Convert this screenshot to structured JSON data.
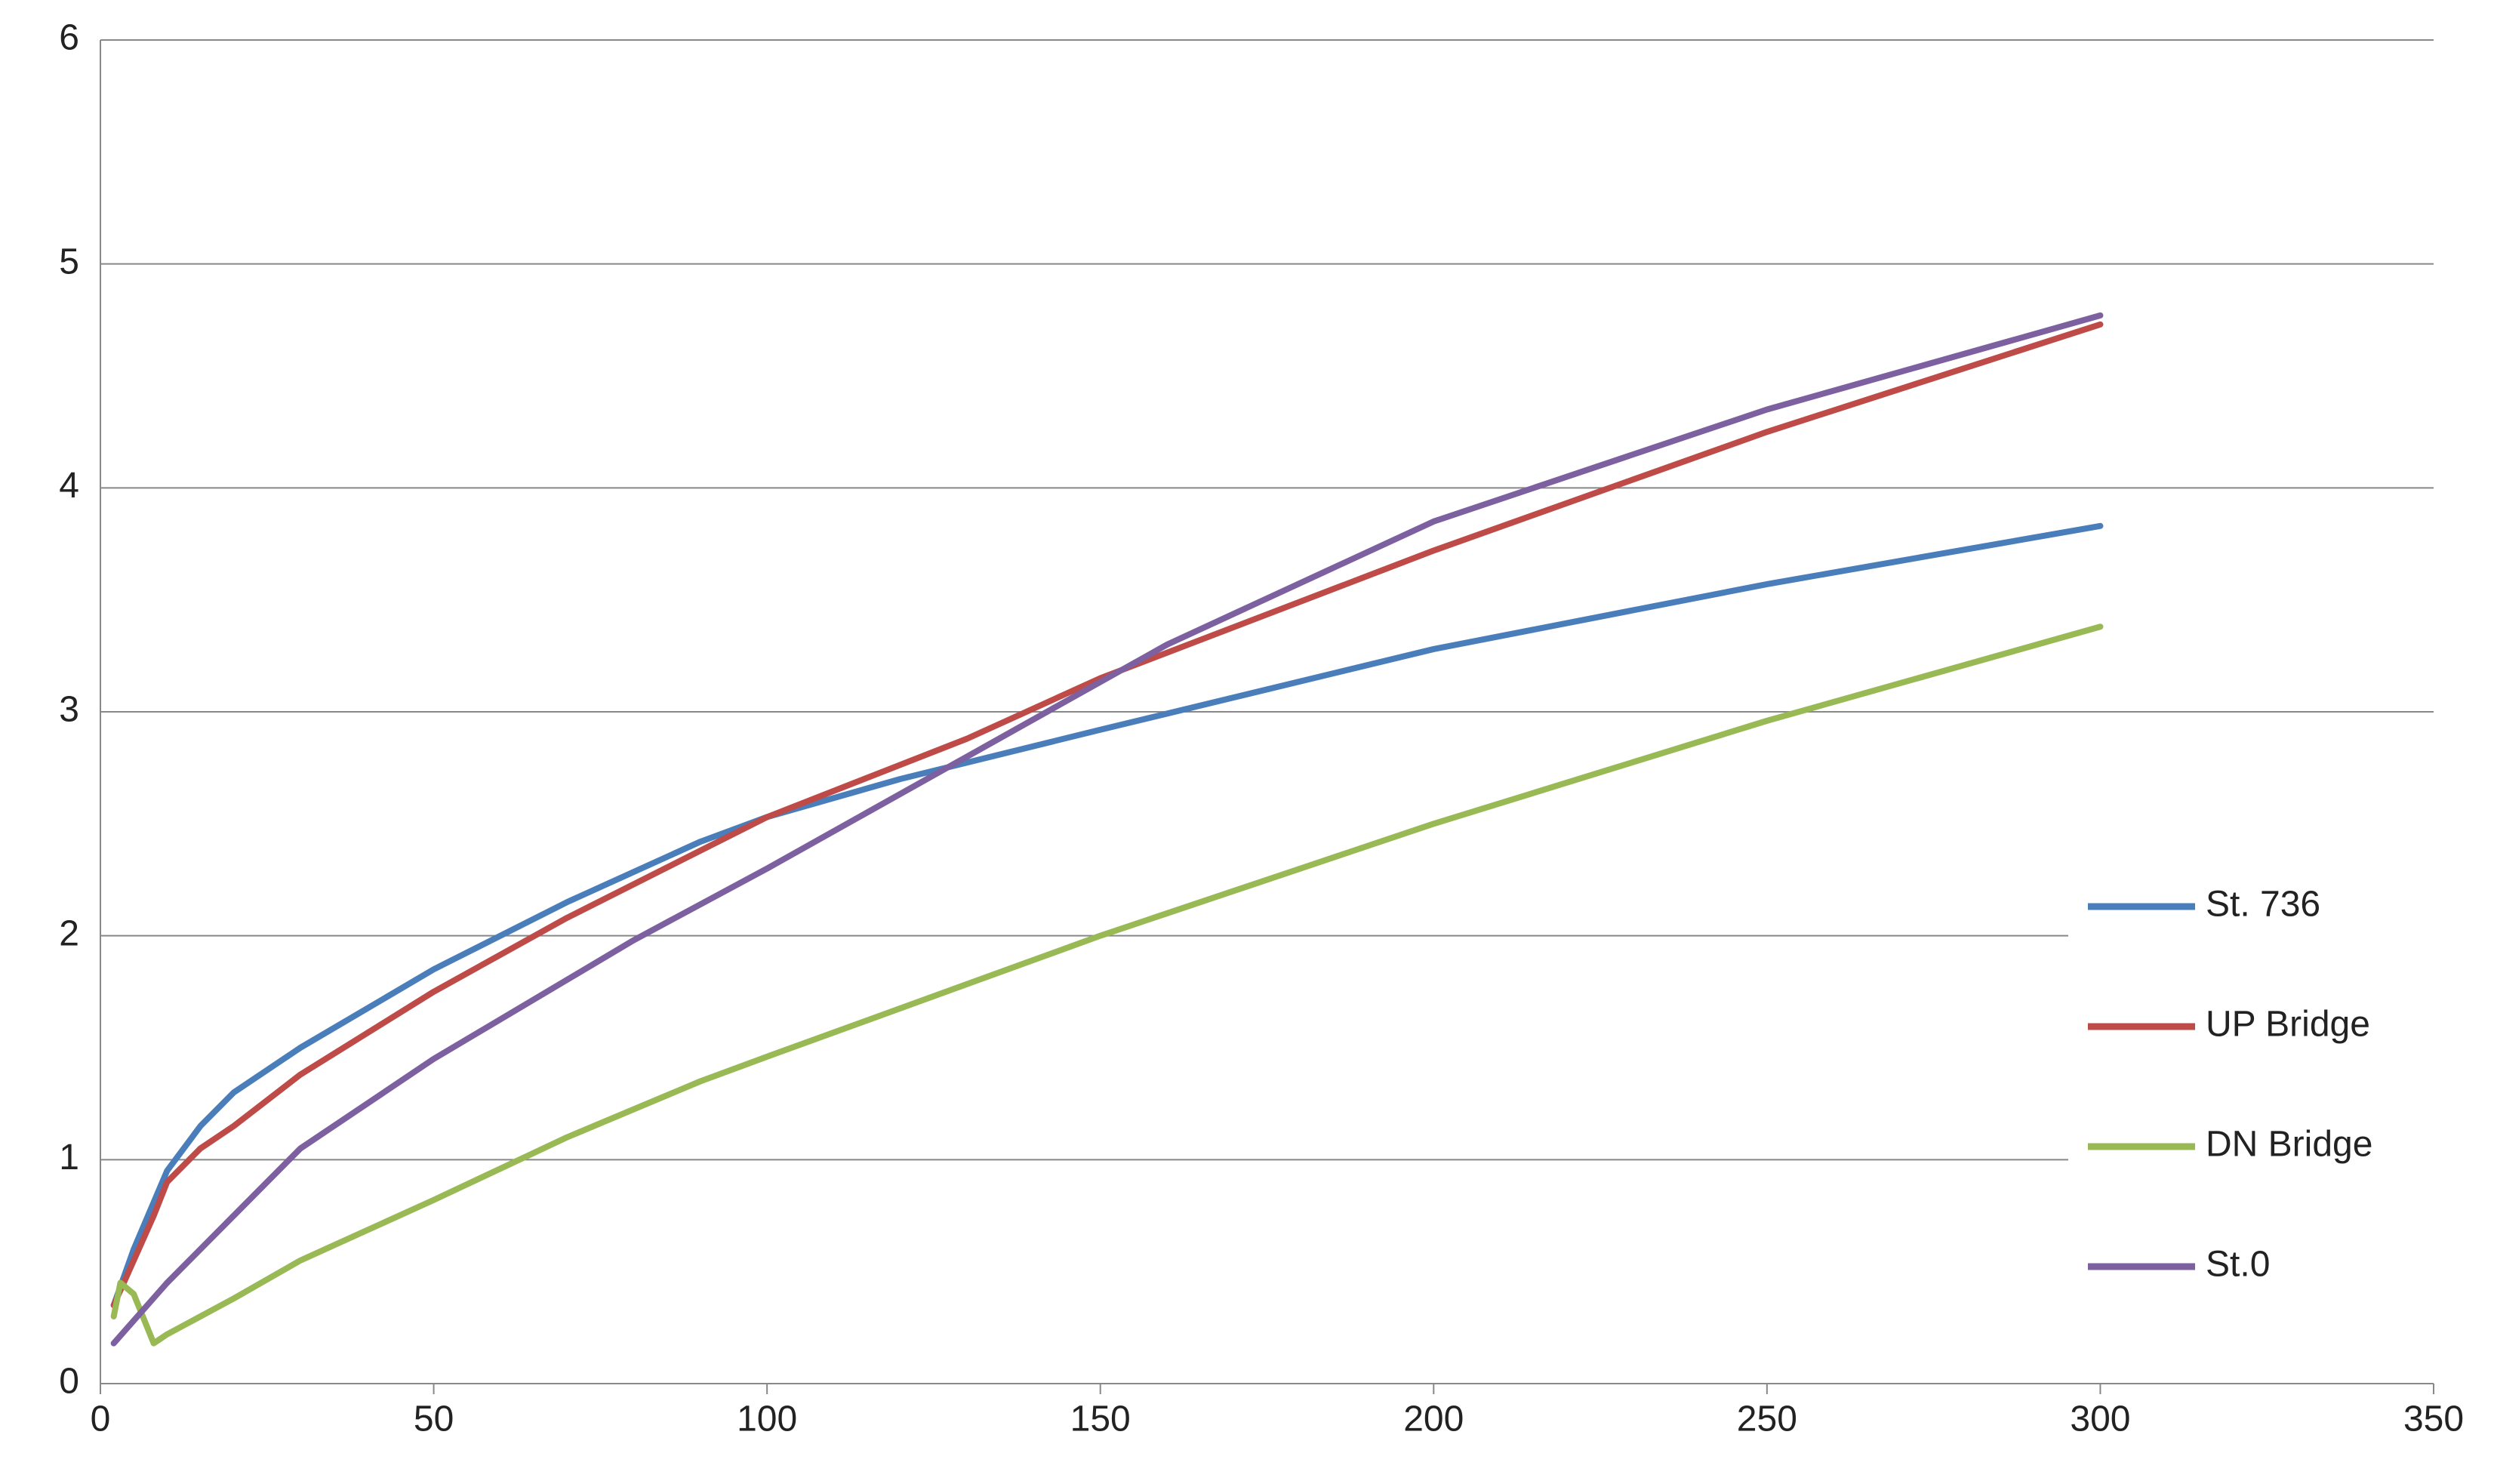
{
  "chart_data": {
    "type": "line",
    "xlim": [
      0,
      350
    ],
    "xticks": [
      0,
      50,
      100,
      150,
      200,
      250,
      300,
      350
    ],
    "ylim": [
      0,
      6
    ],
    "yticks": [
      0,
      1,
      2,
      3,
      4,
      5,
      6
    ],
    "grid": true,
    "legend": "right",
    "series": [
      {
        "name": "St. 736",
        "color": "#4a7ebb",
        "x": [
          2,
          5,
          10,
          15,
          20,
          30,
          50,
          70,
          90,
          100,
          120,
          150,
          200,
          250,
          300
        ],
        "values": [
          0.35,
          0.6,
          0.95,
          1.15,
          1.3,
          1.5,
          1.85,
          2.15,
          2.42,
          2.53,
          2.7,
          2.92,
          3.28,
          3.57,
          3.83
        ]
      },
      {
        "name": "UP Bridge",
        "color": "#be4b48",
        "x": [
          2,
          5,
          8,
          10,
          15,
          20,
          30,
          50,
          70,
          100,
          130,
          150,
          200,
          250,
          300
        ],
        "values": [
          0.35,
          0.55,
          0.75,
          0.9,
          1.05,
          1.15,
          1.38,
          1.75,
          2.08,
          2.53,
          2.88,
          3.15,
          3.72,
          4.25,
          4.73
        ]
      },
      {
        "name": "DN Bridge",
        "color": "#98b954",
        "x": [
          2,
          3,
          5,
          8,
          10,
          20,
          30,
          50,
          70,
          90,
          100,
          150,
          200,
          250,
          300
        ],
        "values": [
          0.3,
          0.45,
          0.4,
          0.18,
          0.22,
          0.38,
          0.55,
          0.82,
          1.1,
          1.35,
          1.46,
          2.0,
          2.5,
          2.96,
          3.38
        ]
      },
      {
        "name": "St.0",
        "color": "#7d60a0",
        "x": [
          2,
          10,
          20,
          30,
          50,
          80,
          100,
          130,
          160,
          200,
          250,
          300
        ],
        "values": [
          0.18,
          0.45,
          0.75,
          1.05,
          1.45,
          1.98,
          2.3,
          2.8,
          3.3,
          3.85,
          4.35,
          4.77
        ]
      }
    ]
  }
}
